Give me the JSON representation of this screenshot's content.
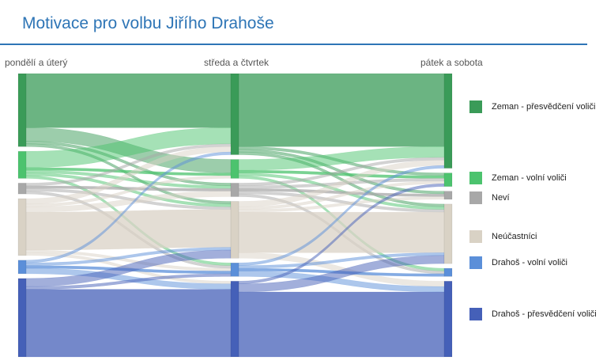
{
  "title": "Motivace pro volbu Jiřího Drahoše",
  "chart_data": {
    "type": "sankey",
    "stages": [
      "pondělí a úterý",
      "středa a čtvrtek",
      "pátek a sobota"
    ],
    "categories": [
      {
        "name": "Zeman - přesvědčení voliči",
        "color": "#3a9b58"
      },
      {
        "name": "Zeman - volní voliči",
        "color": "#4cc36e"
      },
      {
        "name": "Neví",
        "color": "#a8a8a8"
      },
      {
        "name": "Neúčastníci",
        "color": "#d9d2c5"
      },
      {
        "name": "Drahoš - volní voliči",
        "color": "#5b8fd9"
      },
      {
        "name": "Drahoš - přesvědčení voliči",
        "color": "#4560b8"
      }
    ],
    "node_sizes": [
      [
        27,
        10,
        4,
        21,
        5,
        29
      ],
      [
        30,
        7,
        5,
        21,
        5,
        28
      ],
      [
        35,
        5,
        3,
        22,
        3,
        28
      ]
    ],
    "flows": [
      [
        [
          20,
          5,
          1,
          1,
          0,
          0
        ],
        [
          6,
          1,
          1,
          1,
          1,
          0
        ],
        [
          1,
          0,
          1,
          1,
          1,
          0
        ],
        [
          2,
          1,
          2,
          14,
          1,
          1
        ],
        [
          1,
          0,
          0,
          1,
          1,
          2
        ],
        [
          0,
          0,
          0,
          3,
          1,
          25
        ]
      ],
      [
        [
          27,
          1,
          1,
          1,
          0,
          0
        ],
        [
          4,
          1,
          0,
          1,
          1,
          0
        ],
        [
          1,
          1,
          1,
          1,
          1,
          0
        ],
        [
          2,
          1,
          1,
          15,
          0,
          2
        ],
        [
          1,
          0,
          0,
          1,
          1,
          2
        ],
        [
          0,
          1,
          0,
          3,
          0,
          24
        ]
      ]
    ]
  }
}
